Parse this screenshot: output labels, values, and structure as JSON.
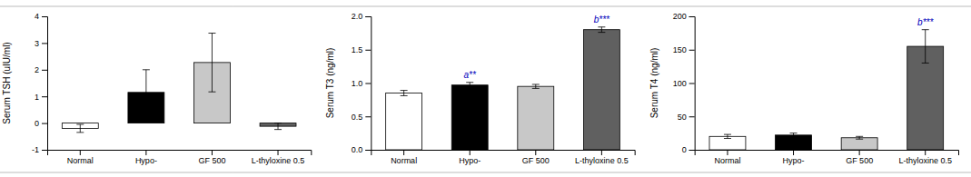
{
  "chart_data": [
    {
      "type": "bar",
      "ylabel": "Serum  TSH (uIU/ml)",
      "categories": [
        "Normal",
        "Hypo-",
        "GF 500",
        "L-thyloxine 0.5"
      ],
      "values": [
        -0.2,
        1.15,
        2.27,
        -0.12
      ],
      "errors": [
        0.15,
        0.85,
        1.1,
        0.12
      ],
      "colors": [
        "white",
        "black",
        "#c8c8c8",
        "#606060"
      ],
      "annotations": [
        null,
        null,
        null,
        null
      ],
      "ylim": [
        -1,
        4
      ],
      "yticks": [
        -1,
        0,
        1,
        2,
        3,
        4
      ]
    },
    {
      "type": "bar",
      "ylabel": "Serum  T3 (ng/ml)",
      "categories": [
        "Normal",
        "Hypo-",
        "GF 500",
        "L-thyloxine 0.5"
      ],
      "values": [
        0.85,
        0.97,
        0.95,
        1.8
      ],
      "errors": [
        0.04,
        0.04,
        0.03,
        0.04
      ],
      "colors": [
        "white",
        "black",
        "#c8c8c8",
        "#606060"
      ],
      "annotations": [
        null,
        "a**",
        null,
        "b***"
      ],
      "ylim": [
        0,
        2
      ],
      "yticks": [
        {
          "value": 0,
          "label": "0.0"
        },
        0.5,
        {
          "value": 1,
          "label": "1.0"
        },
        1.5,
        {
          "value": 2,
          "label": "2.0"
        }
      ]
    },
    {
      "type": "bar",
      "ylabel": "Serum  T4 (ng/ml)",
      "categories": [
        "Normal",
        "Hypo-",
        "GF 500",
        "L-thyloxine 0.5"
      ],
      "values": [
        20,
        22,
        18,
        155
      ],
      "errors": [
        3,
        3,
        2,
        25
      ],
      "colors": [
        "white",
        "black",
        "#c8c8c8",
        "#606060"
      ],
      "annotations": [
        null,
        null,
        null,
        "b***"
      ],
      "ylim": [
        0,
        200
      ],
      "yticks": [
        0,
        50,
        100,
        150,
        200
      ]
    }
  ]
}
